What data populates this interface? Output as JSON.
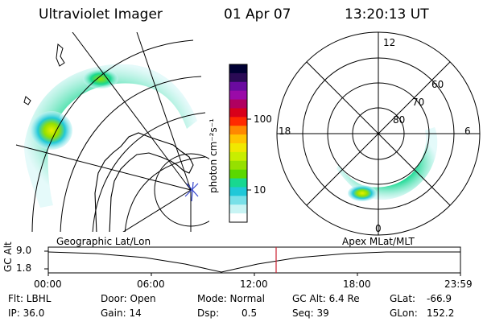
{
  "header": {
    "instrument": "Ultraviolet Imager",
    "date": "01 Apr 07",
    "time": "13:20:13 UT"
  },
  "colorbar": {
    "unit_label": "photon cm⁻²s⁻¹",
    "ticks": [
      "100",
      "10"
    ],
    "colors": [
      "#000033",
      "#2a0a55",
      "#6a0aa0",
      "#9a0aa8",
      "#b00060",
      "#d8001a",
      "#ff2a00",
      "#ff8800",
      "#ffc400",
      "#f0e800",
      "#c8ee00",
      "#96e000",
      "#5ad800",
      "#18d890",
      "#20c8d8",
      "#78e0e8",
      "#c8f4f4",
      "#ffffff"
    ]
  },
  "left_panel": {
    "caption": "Geographic Lat/Lon"
  },
  "right_panel": {
    "caption": "Apex MLat/MLT",
    "mlt_labels": {
      "top": "12",
      "left": "18",
      "right": "6",
      "bottom": "0"
    },
    "lat_labels": [
      "60",
      "70",
      "80"
    ]
  },
  "timeline": {
    "y_axis_label": "GC Alt",
    "y_ticks": [
      "9.0",
      "1.8"
    ],
    "x_ticks": [
      "00:00",
      "06:00",
      "12:00",
      "18:00",
      "23:59"
    ],
    "marker_color": "#cc2233"
  },
  "status": {
    "filter": "Flt: LBHL",
    "ip": "IP: 36.0",
    "door": "Door: Open",
    "gain": "Gain: 14",
    "mode": "Mode: Normal",
    "dsp_label": "Dsp:",
    "dsp_value": "0.5",
    "gc_alt": "GC Alt: 6.4 Re",
    "seq": "Seq: 39",
    "glat_label": "GLat:",
    "glat_value": "-66.9",
    "glon_label": "GLon:",
    "glon_value": "152.2"
  }
}
